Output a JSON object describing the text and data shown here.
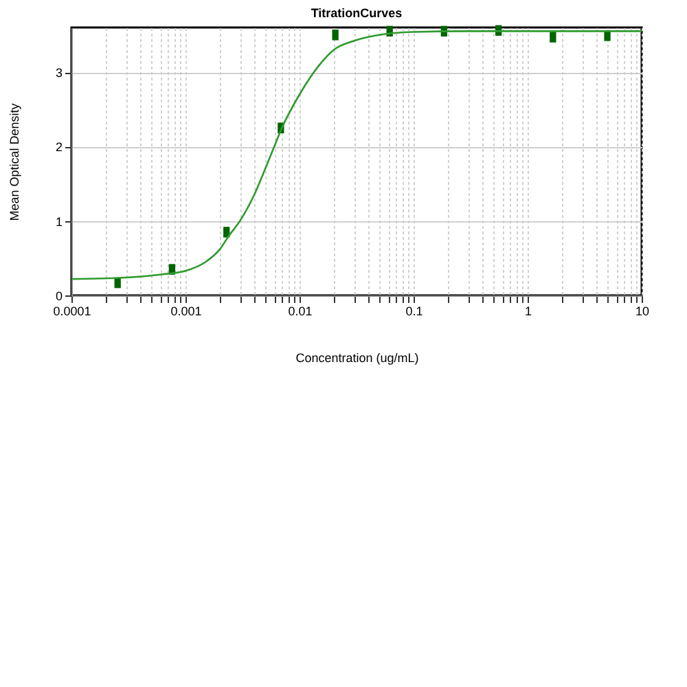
{
  "chart_data": {
    "type": "scatter",
    "title": "TitrationCurves",
    "xlabel": "Concentration (ug/mL)",
    "ylabel": "Mean Optical Density",
    "log": "x",
    "grid": true,
    "marker": "square",
    "xlim": [
      0.0001,
      10
    ],
    "ylim": [
      0,
      3.6
    ],
    "yticks": [
      0,
      1,
      2,
      3
    ],
    "xticks": [
      0.0001,
      {
        "value": 0.0002,
        "label": null
      },
      {
        "value": 0.0003,
        "label": null
      },
      {
        "value": 0.0004,
        "label": null
      },
      {
        "value": 0.0005,
        "label": null
      },
      {
        "value": 0.0006,
        "label": null
      },
      {
        "value": 0.0007,
        "label": null
      },
      {
        "value": 0.0008,
        "label": null
      },
      {
        "value": 0.0009,
        "label": null
      },
      0.001,
      {
        "value": 0.002,
        "label": null
      },
      {
        "value": 0.003,
        "label": null
      },
      {
        "value": 0.004,
        "label": null
      },
      {
        "value": 0.005,
        "label": null
      },
      {
        "value": 0.006,
        "label": null
      },
      {
        "value": 0.007,
        "label": null
      },
      {
        "value": 0.008,
        "label": null
      },
      {
        "value": 0.009,
        "label": null
      },
      0.01,
      {
        "value": 0.02,
        "label": null
      },
      {
        "value": 0.03,
        "label": null
      },
      {
        "value": 0.04,
        "label": null
      },
      {
        "value": 0.05,
        "label": null
      },
      {
        "value": 0.06,
        "label": null
      },
      {
        "value": 0.07,
        "label": null
      },
      {
        "value": 0.08,
        "label": null
      },
      {
        "value": 0.09,
        "label": null
      },
      0.1,
      {
        "value": 0.2,
        "label": null
      },
      {
        "value": 0.3,
        "label": null
      },
      {
        "value": 0.4,
        "label": null
      },
      {
        "value": 0.5,
        "label": null
      },
      {
        "value": 0.6,
        "label": null
      },
      {
        "value": 0.7,
        "label": null
      },
      {
        "value": 0.8,
        "label": null
      },
      {
        "value": 0.9,
        "label": null
      },
      1,
      {
        "value": 2,
        "label": null
      },
      {
        "value": 3,
        "label": null
      },
      {
        "value": 4,
        "label": null
      },
      {
        "value": 5,
        "label": null
      },
      {
        "value": 6,
        "label": null
      },
      {
        "value": 7,
        "label": null
      },
      {
        "value": 8,
        "label": null
      },
      {
        "value": 9,
        "label": null
      },
      10
    ],
    "series": [
      {
        "color": "#006400",
        "x": [
          0.000254,
          0.000762,
          0.00229,
          0.00686,
          0.0206,
          0.0617,
          0.185,
          0.556,
          1.667,
          5
        ],
        "values": [
          0.17,
          0.35,
          0.85,
          2.25,
          3.5,
          3.55,
          3.55,
          3.56,
          3.47,
          3.49
        ]
      },
      {
        "type": "line",
        "color": "#2e9b2e",
        "marker": "none",
        "x": [
          0.0001,
          0.0003,
          0.0006,
          0.001,
          0.0015,
          0.002,
          0.0024,
          0.003,
          0.004,
          0.005,
          0.006,
          0.007,
          0.01,
          0.015,
          0.02,
          0.03,
          0.05,
          0.1,
          0.3,
          1,
          10
        ],
        "values": [
          0.22,
          0.24,
          0.28,
          0.33,
          0.45,
          0.62,
          0.8,
          1.0,
          1.35,
          1.7,
          2.0,
          2.25,
          2.7,
          3.1,
          3.3,
          3.42,
          3.5,
          3.54,
          3.55,
          3.55,
          3.55
        ]
      }
    ]
  }
}
